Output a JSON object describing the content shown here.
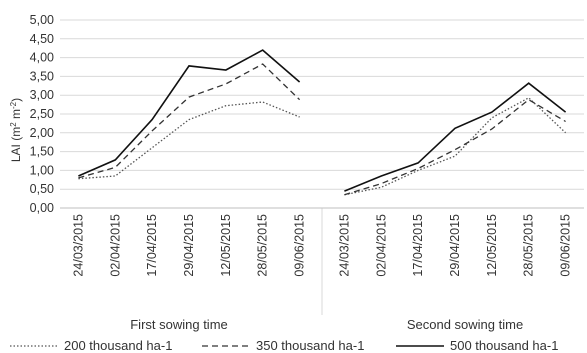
{
  "chart_data": {
    "type": "line",
    "ylabel_main": "LAI (m",
    "ylabel_sup1": "2",
    "ylabel_mid": " m",
    "ylabel_sup2": "-2",
    "ylabel_end": ")",
    "ylim": [
      0,
      5
    ],
    "yticks": [
      "0,00",
      "0,50",
      "1,00",
      "1,50",
      "2,00",
      "2,50",
      "3,00",
      "3,50",
      "4,00",
      "4,50",
      "5,00"
    ],
    "grid": true,
    "legend_position": "bottom",
    "groups": [
      {
        "label": "First sowing time",
        "categories": [
          "24/03/2015",
          "02/04/2015",
          "17/04/2015",
          "29/04/2015",
          "12/05/2015",
          "28/05/2015",
          "09/06/2015"
        ],
        "series": [
          {
            "name": "200 thousand ha-1",
            "values": [
              0.78,
              0.85,
              1.6,
              2.35,
              2.72,
              2.82,
              2.42
            ]
          },
          {
            "name": "350 thousand ha-1",
            "values": [
              0.8,
              1.08,
              2.05,
              2.95,
              3.3,
              3.83,
              2.88
            ]
          },
          {
            "name": "500 thousand ha-1",
            "values": [
              0.85,
              1.28,
              2.35,
              3.78,
              3.67,
              4.2,
              3.35
            ]
          }
        ]
      },
      {
        "label": "Second sowing time",
        "categories": [
          "24/03/2015",
          "02/04/2015",
          "17/04/2015",
          "29/04/2015",
          "12/05/2015",
          "28/05/2015",
          "09/06/2015"
        ],
        "series": [
          {
            "name": "200 thousand ha-1",
            "values": [
              0.35,
              0.55,
              1.0,
              1.38,
              2.4,
              2.93,
              2.0
            ]
          },
          {
            "name": "350 thousand ha-1",
            "values": [
              0.35,
              0.65,
              1.05,
              1.55,
              2.1,
              2.88,
              2.3
            ]
          },
          {
            "name": "500 thousand ha-1",
            "values": [
              0.45,
              0.85,
              1.2,
              2.12,
              2.55,
              3.32,
              2.55
            ]
          }
        ]
      }
    ],
    "series_styles": [
      {
        "name": "200 thousand ha-1",
        "dash": "1.5,2",
        "color": "#555555"
      },
      {
        "name": "350 thousand ha-1",
        "dash": "6,4",
        "color": "#333333"
      },
      {
        "name": "500 thousand ha-1",
        "dash": "",
        "color": "#111111"
      }
    ]
  }
}
